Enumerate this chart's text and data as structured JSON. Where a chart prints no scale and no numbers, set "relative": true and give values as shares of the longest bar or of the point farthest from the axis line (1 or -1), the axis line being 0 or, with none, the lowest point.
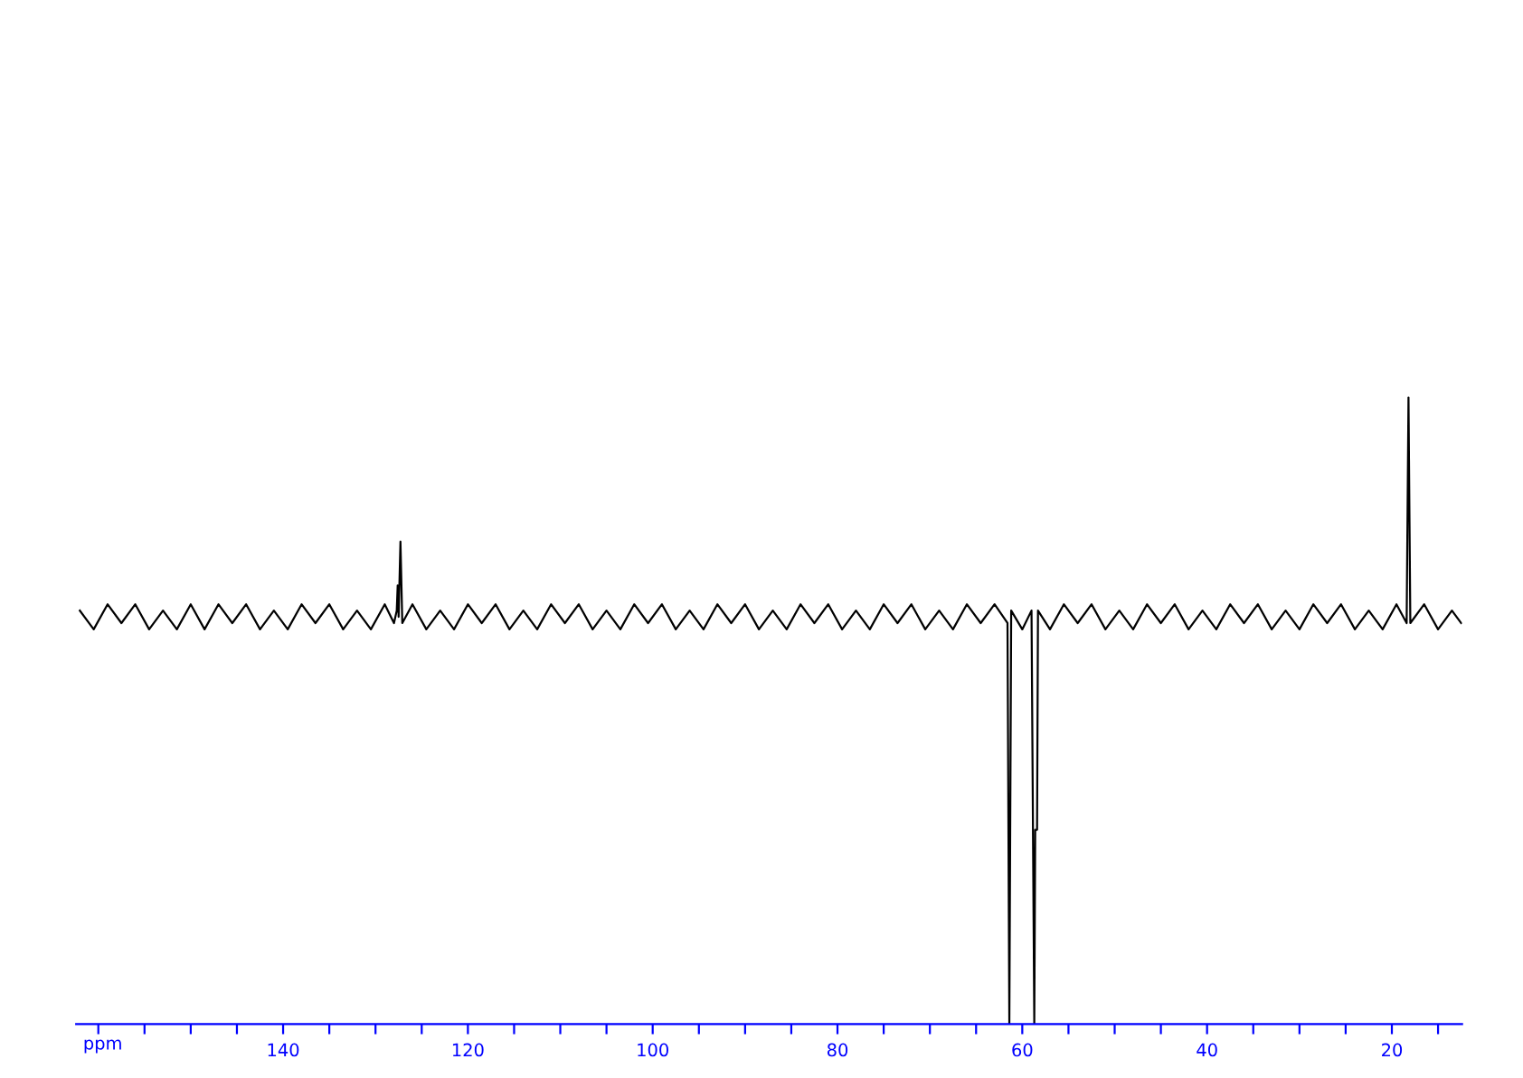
{
  "chart_data": {
    "type": "line",
    "xlabel": "ppm",
    "relative": true,
    "tick_labels": "x",
    "color": "#000000",
    "xlim": [
      162.4,
      12.4
    ],
    "xticks": [
      {
        "value": 160,
        "label": null
      },
      {
        "value": 155,
        "label": null
      },
      {
        "value": 150,
        "label": null
      },
      {
        "value": 145,
        "label": null
      },
      140,
      {
        "value": 135,
        "label": null
      },
      {
        "value": 130,
        "label": null
      },
      {
        "value": 125,
        "label": null
      },
      120,
      {
        "value": 115,
        "label": null
      },
      {
        "value": 110,
        "label": null
      },
      {
        "value": 105,
        "label": null
      },
      100,
      {
        "value": 95,
        "label": null
      },
      {
        "value": 90,
        "label": null
      },
      {
        "value": 85,
        "label": null
      },
      80,
      {
        "value": 75,
        "label": null
      },
      {
        "value": 70,
        "label": null
      },
      {
        "value": 65,
        "label": null
      },
      60,
      {
        "value": 55,
        "label": null
      },
      {
        "value": 50,
        "label": null
      },
      {
        "value": 45,
        "label": null
      },
      40,
      {
        "value": 35,
        "label": null
      },
      {
        "value": 30,
        "label": null
      },
      {
        "value": 25,
        "label": null
      },
      20,
      {
        "value": 15,
        "label": null
      }
    ],
    "x": [
      162,
      160.5,
      159,
      157.5,
      156,
      154.5,
      153,
      151.5,
      150,
      148.5,
      147,
      145.5,
      144,
      142.5,
      141,
      139.5,
      138,
      136.5,
      135,
      133.5,
      132,
      130.5,
      129,
      128,
      127.7,
      127.6,
      127.5,
      127.3,
      127.1,
      126,
      124.5,
      123,
      121.5,
      120,
      118.5,
      117,
      115.5,
      114,
      112.5,
      111,
      109.5,
      108,
      106.5,
      105,
      103.5,
      102,
      100.5,
      99,
      97.5,
      96,
      94.5,
      93,
      91.5,
      90,
      88.5,
      87,
      85.5,
      84,
      82.5,
      81,
      79.5,
      78,
      76.5,
      75,
      73.5,
      72,
      70.5,
      69,
      67.5,
      66,
      64.5,
      63,
      61.6,
      61.4,
      61.2,
      60,
      59,
      58.7,
      58.6,
      58.4,
      58.3,
      57,
      55.5,
      54,
      52.5,
      51,
      49.5,
      48,
      46.5,
      45,
      43.5,
      42,
      40.5,
      39,
      37.5,
      36,
      34.5,
      33,
      31.5,
      30,
      28.5,
      27,
      25.5,
      24,
      22.5,
      21,
      19.5,
      18.4,
      18.2,
      18.0,
      16.5,
      15,
      13.5,
      12.5
    ],
    "values": [
      0.66,
      0.63,
      0.67,
      0.64,
      0.67,
      0.63,
      0.66,
      0.63,
      0.67,
      0.63,
      0.67,
      0.64,
      0.67,
      0.63,
      0.66,
      0.63,
      0.67,
      0.64,
      0.67,
      0.63,
      0.66,
      0.63,
      0.67,
      0.64,
      0.66,
      0.7,
      0.65,
      0.77,
      0.64,
      0.67,
      0.63,
      0.66,
      0.63,
      0.67,
      0.64,
      0.67,
      0.63,
      0.66,
      0.63,
      0.67,
      0.64,
      0.67,
      0.63,
      0.66,
      0.63,
      0.67,
      0.64,
      0.67,
      0.63,
      0.66,
      0.63,
      0.67,
      0.64,
      0.67,
      0.63,
      0.66,
      0.63,
      0.67,
      0.64,
      0.67,
      0.63,
      0.66,
      0.63,
      0.67,
      0.64,
      0.67,
      0.63,
      0.66,
      0.63,
      0.67,
      0.64,
      0.67,
      0.64,
      0,
      0.66,
      0.63,
      0.66,
      0,
      0.31,
      0.31,
      0.66,
      0.63,
      0.67,
      0.64,
      0.67,
      0.63,
      0.66,
      0.63,
      0.67,
      0.64,
      0.67,
      0.63,
      0.66,
      0.63,
      0.67,
      0.64,
      0.67,
      0.63,
      0.66,
      0.63,
      0.67,
      0.64,
      0.67,
      0.63,
      0.66,
      0.63,
      0.67,
      0.64,
      1,
      0.64,
      0.67,
      0.63,
      0.66,
      0.64
    ]
  }
}
